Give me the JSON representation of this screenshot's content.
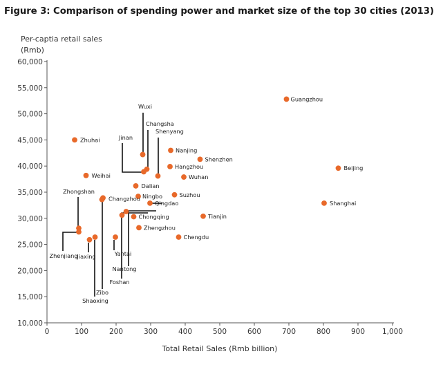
{
  "figure": {
    "title": "Figure 3:  Comparison of spending power and market size of the top 30 cities (2013)"
  },
  "chart_data": {
    "type": "scatter",
    "title": "Figure 3:  Comparison of spending power and market size of the top 30 cities (2013)",
    "xlabel": "Total Retail Sales (Rmb billion)",
    "ylabel": [
      "Per-captia retail sales",
      "(Rmb)"
    ],
    "xlim": [
      0,
      1000
    ],
    "ylim": [
      10000,
      60000
    ],
    "x_ticks": [
      0,
      100,
      200,
      300,
      400,
      500,
      600,
      700,
      800,
      900,
      1000
    ],
    "x_tick_labels": [
      "0",
      "100",
      "200",
      "300",
      "400",
      "500",
      "600",
      "700",
      "800",
      "900",
      "1,000"
    ],
    "y_ticks": [
      10000,
      15000,
      20000,
      25000,
      30000,
      35000,
      40000,
      45000,
      50000,
      55000,
      60000
    ],
    "y_tick_labels": [
      "10,000",
      "15,000",
      "20,000",
      "25,000",
      "30,000",
      "35,000",
      "40,000",
      "45,000",
      "50,000",
      "55,000",
      "60,000"
    ],
    "grid": false,
    "marker_color": "#e8692a",
    "points": [
      {
        "name": "Guangzhou",
        "x": 693,
        "y": 52800
      },
      {
        "name": "Beijing",
        "x": 843,
        "y": 39600
      },
      {
        "name": "Shanghai",
        "x": 802,
        "y": 32900
      },
      {
        "name": "Tianjin",
        "x": 452,
        "y": 30400
      },
      {
        "name": "Chengdu",
        "x": 381,
        "y": 26400
      },
      {
        "name": "Shenzhen",
        "x": 443,
        "y": 41300
      },
      {
        "name": "Wuhan",
        "x": 396,
        "y": 37900
      },
      {
        "name": "Suzhou",
        "x": 369,
        "y": 34500
      },
      {
        "name": "Nanjing",
        "x": 358,
        "y": 43000
      },
      {
        "name": "Hangzhou",
        "x": 356,
        "y": 39900
      },
      {
        "name": "Chongqing",
        "x": 251,
        "y": 30300
      },
      {
        "name": "Zhengzhou",
        "x": 266,
        "y": 28200
      },
      {
        "name": "Qingdao",
        "x": 298,
        "y": 32900
      },
      {
        "name": "Ningbo",
        "x": 264,
        "y": 34200
      },
      {
        "name": "Dalian",
        "x": 257,
        "y": 36200
      },
      {
        "name": "Zhuhai",
        "x": 80,
        "y": 45000
      },
      {
        "name": "Weihai",
        "x": 113,
        "y": 38200
      },
      {
        "name": "Wuxi",
        "x": 277,
        "y": 42200
      },
      {
        "name": "Changsha",
        "x": 289,
        "y": 39400
      },
      {
        "name": "Jinan",
        "x": 280,
        "y": 38900
      },
      {
        "name": "Shenyang",
        "x": 321,
        "y": 38100
      },
      {
        "name": "Changzhou",
        "x": 162,
        "y": 33900
      },
      {
        "name": "Foshan",
        "x": 217,
        "y": 30600
      },
      {
        "name": "Nantong",
        "x": 229,
        "y": 31300
      },
      {
        "name": "Yantai",
        "x": 198,
        "y": 26400
      },
      {
        "name": "Zibo",
        "x": 159,
        "y": 33600
      },
      {
        "name": "Shaoxing",
        "x": 139,
        "y": 26400
      },
      {
        "name": "Jiaxing",
        "x": 123,
        "y": 25900
      },
      {
        "name": "Zhongshan",
        "x": 92,
        "y": 28100
      },
      {
        "name": "Zhenjiang",
        "x": 92,
        "y": 27400
      }
    ]
  }
}
